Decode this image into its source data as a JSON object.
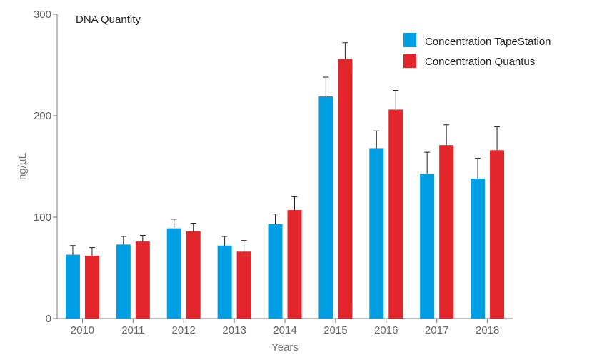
{
  "chart_data": {
    "type": "bar",
    "title": "DNA Quantity",
    "xlabel": "Years",
    "ylabel": "ng/µL",
    "ylim": [
      0,
      300
    ],
    "yticks": [
      0,
      100,
      200,
      300
    ],
    "categories": [
      "2010",
      "2011",
      "2012",
      "2013",
      "2014",
      "2015",
      "2016",
      "2017",
      "2018"
    ],
    "legend_position": "top-right",
    "series": [
      {
        "name": "Concentration TapeStation",
        "color": "#009fe3",
        "values": [
          63,
          73,
          89,
          72,
          93,
          219,
          168,
          143,
          138
        ],
        "errors": [
          9,
          8,
          9,
          9,
          10,
          19,
          17,
          21,
          20
        ]
      },
      {
        "name": "Concentration Quantus",
        "color": "#e3262b",
        "values": [
          62,
          76,
          86,
          66,
          107,
          256,
          206,
          171,
          166
        ],
        "errors": [
          8,
          6,
          8,
          11,
          13,
          16,
          19,
          20,
          23
        ]
      }
    ]
  }
}
